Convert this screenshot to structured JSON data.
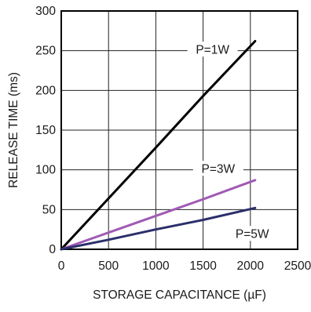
{
  "chart_data": {
    "type": "line",
    "xlabel": "STORAGE CAPACITANCE (µF)",
    "ylabel": "RELEASE TIME (ms)",
    "xlim": [
      0,
      2500
    ],
    "ylim": [
      0,
      300
    ],
    "xticks": [
      0,
      500,
      1000,
      1500,
      2000,
      2500
    ],
    "yticks": [
      0,
      50,
      100,
      150,
      200,
      250,
      300
    ],
    "grid": true,
    "legend": "none",
    "series": [
      {
        "name": "P=1W",
        "color": "#000000",
        "x": [
          0,
          500,
          1000,
          1500,
          2050
        ],
        "y": [
          0,
          64,
          128,
          193,
          262
        ]
      },
      {
        "name": "P=3W",
        "color": "#a05ab4",
        "x": [
          0,
          500,
          1000,
          1500,
          2050
        ],
        "y": [
          0,
          21,
          42,
          63,
          87
        ]
      },
      {
        "name": "P=5W",
        "color": "#2b2f6a",
        "x": [
          0,
          500,
          1000,
          1500,
          2050
        ],
        "y": [
          0,
          12,
          25,
          37,
          52
        ]
      }
    ]
  }
}
